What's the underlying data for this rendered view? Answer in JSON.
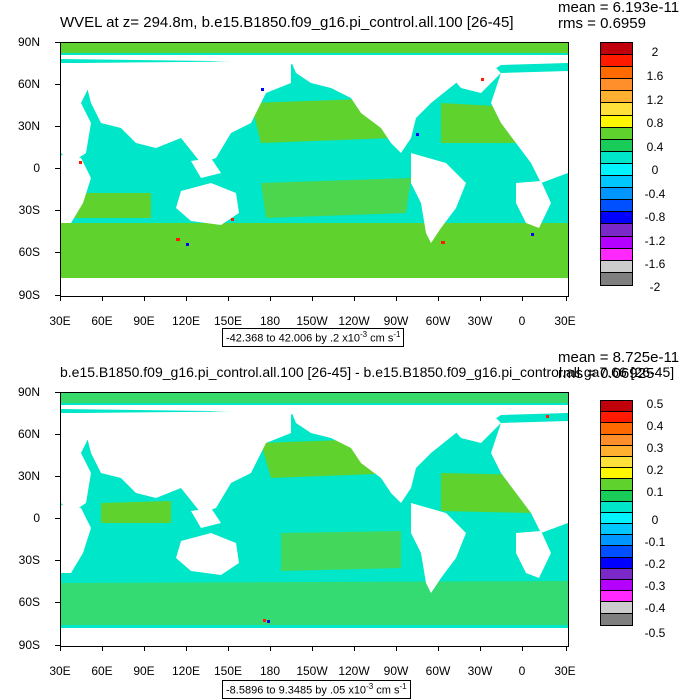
{
  "panels": [
    {
      "title": "WVEL at z= 294.8m, b.e15.B1850.f09_g16.pi_control.all.100 [26-45]",
      "mean": "mean = 6.193e-11",
      "rms": "rms = 0.6959",
      "range_prefix": "-42.368 to 42.006 by .2 x10",
      "range_exp": "-3",
      "range_unit_a": " cm s",
      "range_unit_exp": "-1",
      "colorbar_labels": [
        "2",
        "1.6",
        "1.2",
        "0.8",
        "0.4",
        "0",
        "-0.4",
        "-0.8",
        "-1.2",
        "-1.6",
        "-2"
      ]
    },
    {
      "title": "b.e15.B1850.f09_g16.pi_control.all.100 [26-45] - b.e15.B1850.f09_g16.pi_control.all.ga7.66 [26-45]",
      "mean": "mean = 8.725e-11",
      "rms": "rms = 0.06925",
      "range_prefix": "-8.5896 to 9.3485 by .05 x10",
      "range_exp": "-3",
      "range_unit_a": " cm s",
      "range_unit_exp": "-1",
      "colorbar_labels": [
        "0.5",
        "0.4",
        "0.3",
        "0.2",
        "0.1",
        "0",
        "-0.1",
        "-0.2",
        "-0.3",
        "-0.4",
        "-0.5"
      ]
    }
  ],
  "lat_labels": [
    "90N",
    "60N",
    "30N",
    "0",
    "30S",
    "60S",
    "90S"
  ],
  "lon_labels": [
    "30E",
    "60E",
    "90E",
    "120E",
    "150E",
    "180",
    "150W",
    "120W",
    "90W",
    "60W",
    "30W",
    "0",
    "30E"
  ],
  "colorbar_colors": [
    "#c0000a",
    "#ff1a00",
    "#ff6a00",
    "#ff8f2a",
    "#ffb030",
    "#ffdf3a",
    "#fff700",
    "#5fd22e",
    "#19cc5a",
    "#00e6c8",
    "#00f4ff",
    "#00c8ff",
    "#0096ff",
    "#0050ff",
    "#0000ff",
    "#7a28c8",
    "#b400ff",
    "#ff28ff",
    "#cccccc",
    "#7f7f7f"
  ],
  "ocean_colors": {
    "primary": "#00e6c8",
    "secondary": "#5fd22e",
    "deep": "#00f4ff",
    "land": "#ffffff"
  }
}
